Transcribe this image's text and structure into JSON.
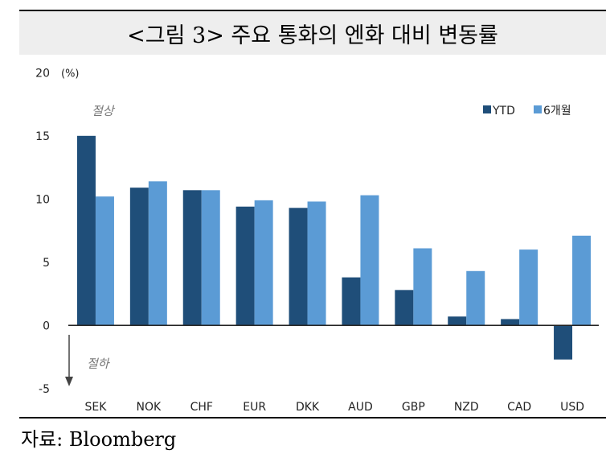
{
  "title": "<그림 3> 주요 통화의 엔화 대비 변동률",
  "source": "자료: Bloomberg",
  "chart_data": {
    "type": "bar",
    "title": "<그림 3> 주요 통화의 엔화 대비 변동률",
    "ylabel": "(%)",
    "categories": [
      "SEK",
      "NOK",
      "CHF",
      "EUR",
      "DKK",
      "AUD",
      "GBP",
      "NZD",
      "CAD",
      "USD"
    ],
    "series": [
      {
        "name": "YTD",
        "color": "#1f4e79",
        "values": [
          15.0,
          10.9,
          10.7,
          9.4,
          9.3,
          3.8,
          2.8,
          0.7,
          0.5,
          -2.7
        ]
      },
      {
        "name": "6개월",
        "color": "#5b9bd5",
        "values": [
          10.2,
          11.4,
          10.7,
          9.9,
          9.8,
          10.3,
          6.1,
          4.3,
          6.0,
          7.1
        ]
      }
    ],
    "ylim": [
      -5,
      20
    ],
    "yticks": [
      "-5",
      "0",
      "5",
      "10",
      "15",
      "20"
    ],
    "annotations": {
      "up": "절상",
      "down": "절하"
    },
    "grid": false,
    "legend": "top-right"
  }
}
